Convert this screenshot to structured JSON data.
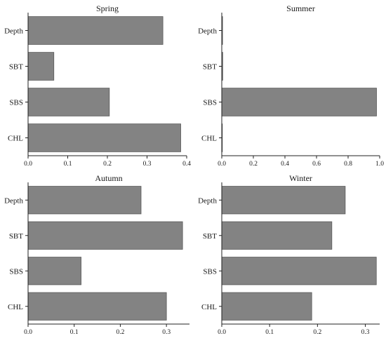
{
  "chart_data": [
    {
      "type": "bar",
      "orientation": "horizontal",
      "title": "Spring",
      "categories": [
        "Depth",
        "SBT",
        "SBS",
        "CHL"
      ],
      "values": [
        0.34,
        0.065,
        0.205,
        0.385
      ],
      "xlim": [
        0,
        0.4
      ],
      "xticks": [
        0.0,
        0.1,
        0.2,
        0.3,
        0.4
      ],
      "tick_labels": [
        "0.0",
        "0.1",
        "0.2",
        "0.3",
        "0.4"
      ]
    },
    {
      "type": "bar",
      "orientation": "horizontal",
      "title": "Summer",
      "categories": [
        "Depth",
        "SBT",
        "SBS",
        "CHL"
      ],
      "values": [
        0.005,
        0.006,
        0.98,
        0.003
      ],
      "xlim": [
        0,
        1.0
      ],
      "xticks": [
        0.0,
        0.2,
        0.4,
        0.6,
        0.8,
        1.0
      ],
      "tick_labels": [
        "0.0",
        "0.2",
        "0.4",
        "0.6",
        "0.8",
        "1.0"
      ]
    },
    {
      "type": "bar",
      "orientation": "horizontal",
      "title": "Autumn",
      "categories": [
        "Depth",
        "SBT",
        "SBS",
        "CHL"
      ],
      "values": [
        0.245,
        0.335,
        0.115,
        0.3
      ],
      "xlim": [
        0,
        0.35
      ],
      "xticks": [
        0.0,
        0.1,
        0.2,
        0.3
      ],
      "tick_labels": [
        "0.0",
        "0.1",
        "0.2",
        "0.3"
      ]
    },
    {
      "type": "bar",
      "orientation": "horizontal",
      "title": "Winter",
      "categories": [
        "Depth",
        "SBT",
        "SBS",
        "CHL"
      ],
      "values": [
        0.258,
        0.23,
        0.323,
        0.188
      ],
      "xlim": [
        0,
        0.33
      ],
      "xticks": [
        0.0,
        0.1,
        0.2,
        0.3
      ],
      "tick_labels": [
        "0.0",
        "0.1",
        "0.2",
        "0.3"
      ]
    }
  ],
  "colors": {
    "bar_fill": "#838383",
    "bar_stroke": "#5a5a5a",
    "axis": "#222222"
  }
}
